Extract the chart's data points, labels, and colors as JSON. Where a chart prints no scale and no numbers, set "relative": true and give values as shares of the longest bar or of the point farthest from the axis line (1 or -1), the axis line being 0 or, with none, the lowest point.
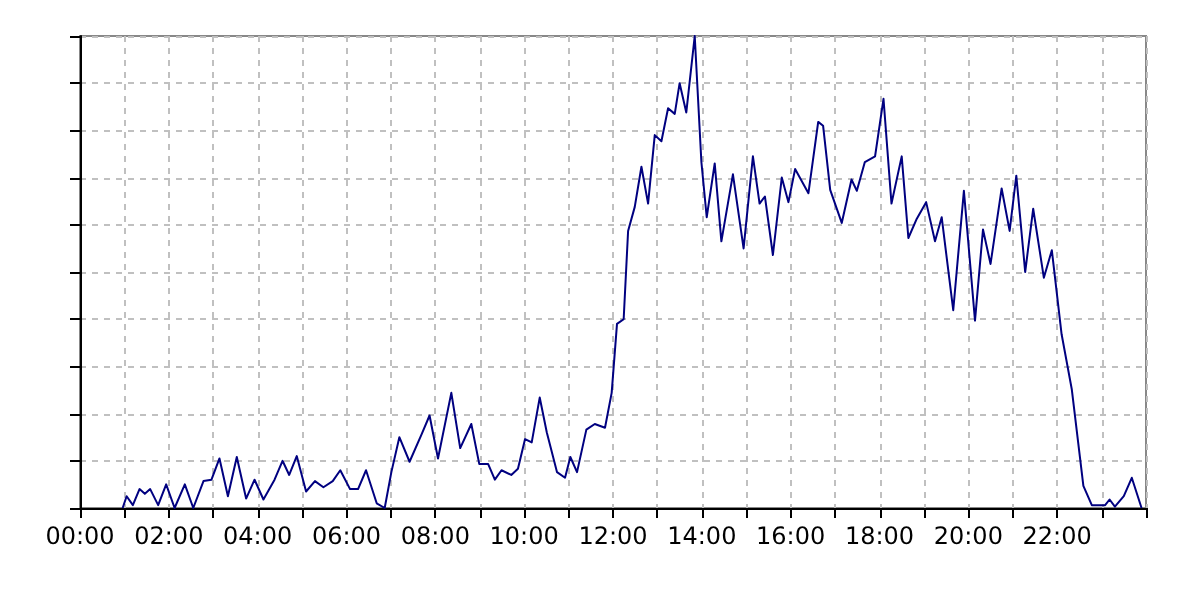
{
  "chart_data": {
    "type": "line",
    "relative": true,
    "grid": true,
    "marker": "none",
    "xlim": [
      0,
      24
    ],
    "xticks": [
      {
        "value": 0,
        "label": "00:00"
      },
      {
        "value": 1,
        "label": null
      },
      {
        "value": 2,
        "label": "02:00"
      },
      {
        "value": 3,
        "label": null
      },
      {
        "value": 4,
        "label": "04:00"
      },
      {
        "value": 5,
        "label": null
      },
      {
        "value": 6,
        "label": "06:00"
      },
      {
        "value": 7,
        "label": null
      },
      {
        "value": 8,
        "label": "08:00"
      },
      {
        "value": 9,
        "label": null
      },
      {
        "value": 10,
        "label": "10:00"
      },
      {
        "value": 11,
        "label": null
      },
      {
        "value": 12,
        "label": "12:00"
      },
      {
        "value": 13,
        "label": null
      },
      {
        "value": 14,
        "label": "14:00"
      },
      {
        "value": 15,
        "label": null
      },
      {
        "value": 16,
        "label": "16:00"
      },
      {
        "value": 17,
        "label": null
      },
      {
        "value": 18,
        "label": "18:00"
      },
      {
        "value": 19,
        "label": null
      },
      {
        "value": 20,
        "label": "20:00"
      },
      {
        "value": 21,
        "label": null
      },
      {
        "value": 22,
        "label": "22:00"
      },
      {
        "value": 23,
        "label": null
      },
      {
        "value": 24,
        "label": null
      }
    ],
    "series": [
      {
        "color": "#000080",
        "x": [
          0.96,
          1.05,
          1.19,
          1.34,
          1.46,
          1.58,
          1.76,
          1.94,
          2.13,
          2.36,
          2.55,
          2.78,
          2.96,
          3.14,
          3.33,
          3.53,
          3.74,
          3.93,
          4.13,
          4.38,
          4.56,
          4.71,
          4.88,
          5.09,
          5.29,
          5.48,
          5.69,
          5.86,
          6.08,
          6.26,
          6.44,
          6.68,
          6.86,
          7.01,
          7.19,
          7.42,
          7.69,
          7.87,
          8.06,
          8.36,
          8.56,
          8.81,
          8.99,
          9.19,
          9.34,
          9.49,
          9.71,
          9.86,
          10.02,
          10.17,
          10.35,
          10.51,
          10.74,
          10.92,
          11.04,
          11.19,
          11.4,
          11.59,
          11.82,
          11.97,
          12.09,
          12.24,
          12.34,
          12.49,
          12.64,
          12.79,
          12.94,
          13.09,
          13.24,
          13.39,
          13.5,
          13.65,
          13.84,
          13.99,
          14.11,
          14.29,
          14.44,
          14.7,
          14.94,
          15.15,
          15.3,
          15.42,
          15.6,
          15.8,
          15.95,
          16.1,
          16.4,
          16.62,
          16.73,
          16.89,
          17.15,
          17.37,
          17.49,
          17.67,
          17.9,
          18.09,
          18.27,
          18.5,
          18.65,
          18.84,
          19.05,
          19.25,
          19.4,
          19.66,
          19.9,
          20.15,
          20.33,
          20.5,
          20.75,
          20.93,
          21.08,
          21.28,
          21.46,
          21.7,
          21.88,
          22.1,
          22.33,
          22.59,
          22.78,
          23.08,
          23.18,
          23.3,
          23.5,
          23.68,
          23.9
        ],
        "values": [
          0,
          0.025,
          0.006,
          0.04,
          0.03,
          0.04,
          0.006,
          0.05,
          0,
          0.05,
          0,
          0.057,
          0.06,
          0.105,
          0.025,
          0.108,
          0.02,
          0.06,
          0.018,
          0.06,
          0.1,
          0.07,
          0.11,
          0.035,
          0.057,
          0.044,
          0.057,
          0.08,
          0.04,
          0.04,
          0.08,
          0.01,
          0,
          0.076,
          0.15,
          0.098,
          0.156,
          0.196,
          0.105,
          0.244,
          0.127,
          0.178,
          0.093,
          0.093,
          0.06,
          0.08,
          0.07,
          0.083,
          0.146,
          0.139,
          0.234,
          0.16,
          0.076,
          0.064,
          0.108,
          0.076,
          0.166,
          0.178,
          0.17,
          0.244,
          0.39,
          0.4,
          0.587,
          0.638,
          0.723,
          0.645,
          0.79,
          0.777,
          0.847,
          0.835,
          0.9,
          0.838,
          1,
          0.733,
          0.616,
          0.73,
          0.565,
          0.707,
          0.55,
          0.745,
          0.645,
          0.66,
          0.536,
          0.7,
          0.648,
          0.718,
          0.667,
          0.818,
          0.81,
          0.674,
          0.604,
          0.696,
          0.672,
          0.733,
          0.745,
          0.867,
          0.645,
          0.745,
          0.572,
          0.613,
          0.648,
          0.565,
          0.616,
          0.419,
          0.672,
          0.397,
          0.59,
          0.517,
          0.677,
          0.587,
          0.704,
          0.5,
          0.634,
          0.488,
          0.546,
          0.368,
          0.251,
          0.047,
          0.006,
          0.006,
          0.018,
          0.003,
          0.025,
          0.064,
          0
        ]
      }
    ]
  }
}
